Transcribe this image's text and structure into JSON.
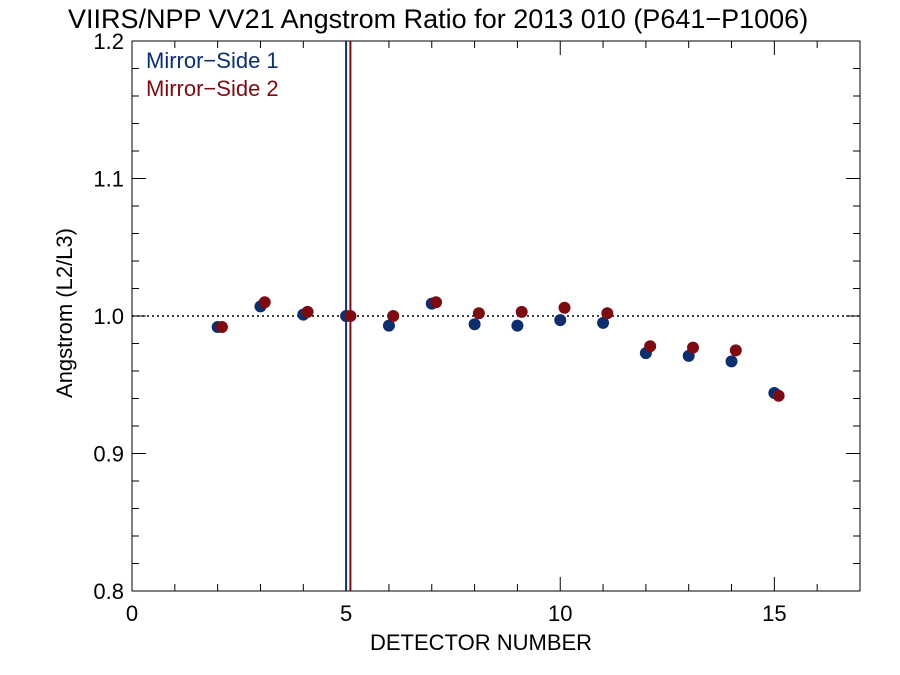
{
  "chart_data": {
    "type": "scatter",
    "title": "VIIRS/NPP VV21 Angstrom Ratio for 2013 010 (P641−P1006)",
    "xlabel": "DETECTOR NUMBER",
    "ylabel": "Angstrom (L2/L3)",
    "xlim": [
      0,
      17
    ],
    "ylim": [
      0.8,
      1.2
    ],
    "x_ticks": [
      0,
      5,
      10,
      15
    ],
    "x_tick_labels": [
      "0",
      "5",
      "10",
      "15"
    ],
    "y_ticks": [
      0.8,
      0.9,
      1.0,
      1.1,
      1.2
    ],
    "y_tick_labels": [
      "0.8",
      "0.9",
      "1.0",
      "1.1",
      "1.2"
    ],
    "reference_line": {
      "y": 1.0,
      "style": "dotted"
    },
    "legend_position": "top-left",
    "series": [
      {
        "name": "Mirror−Side 1",
        "color": "#0d2f6e",
        "x": [
          2,
          3,
          4,
          5,
          6,
          7,
          8,
          9,
          10,
          11,
          12,
          13,
          14,
          15
        ],
        "y": [
          0.992,
          1.007,
          1.001,
          1.0,
          0.993,
          1.009,
          0.994,
          0.993,
          0.997,
          0.995,
          0.973,
          0.971,
          0.967,
          0.944
        ],
        "vline_x": 5
      },
      {
        "name": "Mirror−Side 2",
        "color": "#7a0c12",
        "x": [
          2.1,
          3.1,
          4.1,
          5.1,
          6.1,
          7.1,
          8.1,
          9.1,
          10.1,
          11.1,
          12.1,
          13.1,
          14.1,
          15.1
        ],
        "y": [
          0.992,
          1.01,
          1.003,
          1.0,
          1.0,
          1.01,
          1.002,
          1.003,
          1.006,
          1.002,
          0.978,
          0.977,
          0.975,
          0.942
        ],
        "vline_x": 5.1
      }
    ]
  }
}
